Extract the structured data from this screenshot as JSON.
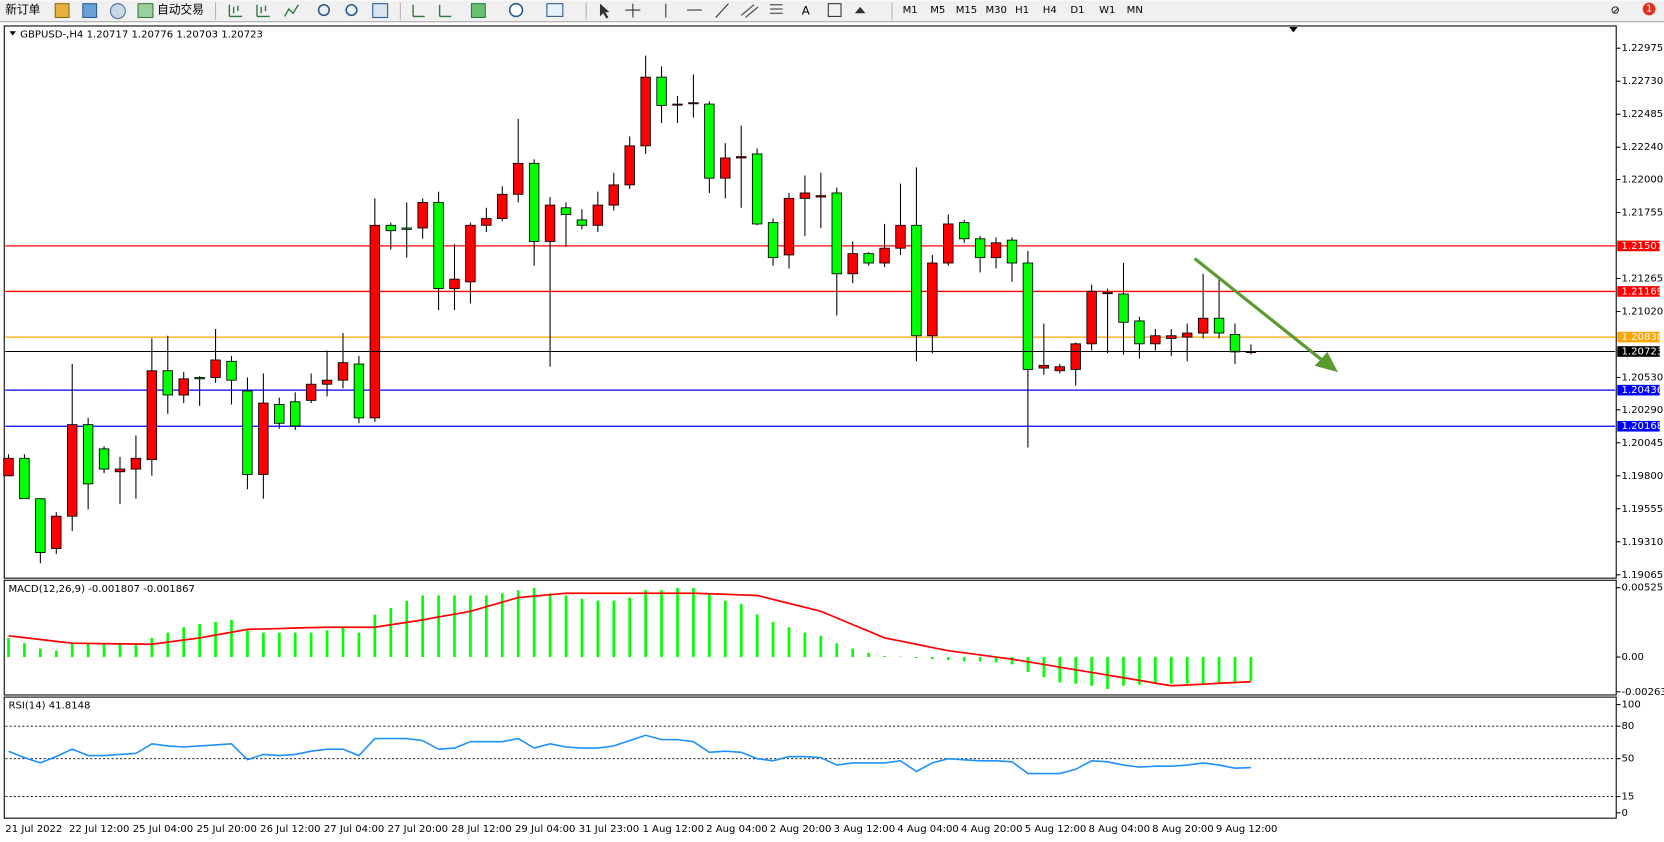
{
  "toolbar": {
    "new_order": "新订单",
    "auto_trade": "自动交易",
    "timeframes": [
      "M1",
      "M5",
      "M15",
      "M30",
      "H1",
      "H4",
      "D1",
      "W1",
      "MN"
    ],
    "notifications": "1"
  },
  "chart_data": [
    {
      "type": "candlestick",
      "title": "GBPUSD-,H4",
      "categories": [
        "21 Jul 2022",
        null,
        null,
        null,
        "22 Jul 12:00",
        null,
        null,
        null,
        "25 Jul 04:00",
        null,
        null,
        null,
        "25 Jul 20:00",
        null,
        null,
        null,
        "26 Jul 12:00",
        null,
        null,
        null,
        "27 Jul 04:00",
        null,
        null,
        null,
        "27 Jul 20:00",
        null,
        null,
        null,
        "28 Jul 12:00",
        null,
        null,
        null,
        "29 Jul 04:00",
        null,
        null,
        null,
        "31 Jul 23:00",
        null,
        null,
        null,
        "1 Aug 12:00",
        null,
        null,
        null,
        "2 Aug 04:00",
        null,
        null,
        null,
        "2 Aug 20:00",
        null,
        null,
        null,
        "3 Aug 12:00",
        null,
        null,
        null,
        "4 Aug 04:00",
        null,
        null,
        null,
        "4 Aug 20:00",
        null,
        null,
        null,
        "5 Aug 12:00",
        null,
        null,
        null,
        "8 Aug 04:00",
        null,
        null,
        null,
        "8 Aug 20:00",
        null,
        null,
        null,
        "9 Aug 12:00",
        null,
        null
      ],
      "open": [
        1.198,
        1.1993,
        1.1963,
        1.1926,
        1.195,
        1.2018,
        1.2,
        1.1983,
        1.1985,
        1.1992,
        1.2058,
        1.204,
        1.2053,
        1.2053,
        1.2065,
        1.2043,
        1.1981,
        1.2033,
        1.2035,
        1.2036,
        1.2048,
        1.2051,
        1.2063,
        1.2023,
        1.2166,
        1.2164,
        1.2164,
        1.2183,
        1.2119,
        1.2124,
        1.2166,
        1.2171,
        1.2189,
        1.2212,
        1.2154,
        1.2179,
        1.217,
        1.2166,
        1.2181,
        1.2196,
        1.2225,
        1.2276,
        1.2256,
        1.2257,
        1.2256,
        1.2201,
        1.2216,
        1.2219,
        1.2168,
        1.2144,
        1.2186,
        1.2187,
        1.219,
        1.213,
        1.2145,
        1.2138,
        1.2149,
        1.2166,
        1.2084,
        1.2138,
        1.2168,
        1.2156,
        1.2142,
        1.2155,
        1.2138,
        1.206,
        1.2058,
        1.2059,
        1.2078,
        1.2116,
        1.2115,
        1.2095,
        1.2078,
        1.2082,
        1.2083,
        1.2086,
        1.2097,
        1.2085,
        1.20717
      ],
      "high": [
        1.1996,
        1.1996,
        1.1963,
        1.1953,
        1.2063,
        1.2023,
        1.2002,
        1.1994,
        1.201,
        1.2082,
        1.2084,
        1.2057,
        1.2054,
        1.2089,
        1.2069,
        1.2053,
        1.2056,
        1.2038,
        1.2042,
        1.2056,
        1.2073,
        1.2086,
        1.2069,
        1.2186,
        1.2168,
        1.2183,
        1.2186,
        1.2191,
        1.2152,
        1.2168,
        1.2179,
        1.2195,
        1.2245,
        1.2215,
        1.2187,
        1.2183,
        1.2178,
        1.2191,
        1.2205,
        1.2232,
        1.2292,
        1.2284,
        1.2262,
        1.2278,
        1.2258,
        1.2227,
        1.224,
        1.2223,
        1.2171,
        1.219,
        1.2203,
        1.2205,
        1.2194,
        1.2154,
        1.2146,
        1.2167,
        1.2197,
        1.2209,
        1.2144,
        1.2174,
        1.217,
        1.2158,
        1.2157,
        1.2157,
        1.2147,
        1.2093,
        1.2063,
        1.2079,
        1.2122,
        1.2119,
        1.2138,
        1.2098,
        1.2089,
        1.2089,
        1.2093,
        1.213,
        1.2128,
        1.2093,
        1.20776
      ],
      "low": [
        1.198,
        1.1963,
        1.1915,
        1.1922,
        1.1939,
        1.1955,
        1.1982,
        1.1959,
        1.1963,
        1.198,
        1.2026,
        1.2034,
        1.2032,
        1.2049,
        1.2033,
        1.197,
        1.1963,
        1.2015,
        1.2014,
        1.2034,
        1.2039,
        1.2045,
        1.2019,
        1.202,
        1.2148,
        1.2142,
        1.2156,
        1.2103,
        1.2103,
        1.2108,
        1.2161,
        1.2169,
        1.2183,
        1.2136,
        1.2061,
        1.215,
        1.2163,
        1.2161,
        1.2177,
        1.2193,
        1.2219,
        1.2242,
        1.2242,
        1.2246,
        1.219,
        1.2186,
        1.2179,
        1.2166,
        1.2136,
        1.2134,
        1.2158,
        1.2164,
        1.2099,
        1.2123,
        1.2136,
        1.2135,
        1.2144,
        1.2065,
        1.2071,
        1.2136,
        1.2153,
        1.2131,
        1.2134,
        1.2124,
        1.2001,
        1.2055,
        1.2056,
        1.2047,
        1.2073,
        1.2071,
        1.207,
        1.2067,
        1.2073,
        1.2069,
        1.2065,
        1.2082,
        1.2082,
        1.2063,
        1.20703
      ],
      "close": [
        1.1993,
        1.1963,
        1.1923,
        1.195,
        1.2018,
        1.1974,
        1.1985,
        1.1985,
        1.1993,
        1.2058,
        1.204,
        1.2052,
        1.2052,
        1.2066,
        1.2051,
        1.1981,
        1.2034,
        1.2019,
        1.2017,
        1.2048,
        1.2051,
        1.2064,
        1.2023,
        1.2166,
        1.2162,
        1.2163,
        1.2183,
        1.2119,
        1.2126,
        1.2166,
        1.2171,
        1.2189,
        1.2212,
        1.2154,
        1.2181,
        1.2174,
        1.2166,
        1.2181,
        1.2196,
        1.2225,
        1.2276,
        1.2255,
        1.2256,
        1.2257,
        1.2201,
        1.2216,
        1.2217,
        1.2167,
        1.2142,
        1.2186,
        1.219,
        1.2188,
        1.213,
        1.2145,
        1.2138,
        1.2149,
        1.2166,
        1.2084,
        1.2138,
        1.2167,
        1.2156,
        1.2142,
        1.2153,
        1.2138,
        1.2059,
        1.2062,
        1.2061,
        1.2078,
        1.2117,
        1.2116,
        1.2094,
        1.2078,
        1.2084,
        1.2084,
        1.2086,
        1.2097,
        1.2086,
        1.2072,
        1.20723
      ],
      "up_color": "#ff0000",
      "down_color": "#00ff00",
      "ylim": [
        1.1904,
        1.2314
      ],
      "yticks": [
        1.22975,
        {
          "value": 1.2273,
          "label": "1.22730"
        },
        1.22485,
        {
          "value": 1.2224,
          "label": "1.22240"
        },
        {
          "value": 1.22,
          "label": "1.22000"
        },
        1.21755,
        1.21265,
        {
          "value": 1.2102,
          "label": "1.21020"
        },
        {
          "value": 1.2053,
          "label": "1.20530"
        },
        {
          "value": 1.2029,
          "label": "1.20290"
        },
        1.20045,
        {
          "value": 1.198,
          "label": "1.19800"
        },
        1.19555,
        {
          "value": 1.1931,
          "label": "1.19310"
        },
        1.19065
      ],
      "hlines": [
        {
          "value": 1.21507,
          "color": "#ff0000"
        },
        {
          "value": 1.21169,
          "color": "#ff0000"
        },
        {
          "value": 1.2083,
          "label": "1.20830",
          "color": "#ffa500"
        },
        {
          "value": 1.20436,
          "color": "#0000ff"
        },
        {
          "value": 1.20168,
          "color": "#0000ff"
        }
      ],
      "last_price_color": "#000000"
    },
    {
      "type": "macd",
      "title": "MACD(12,26,9)",
      "values": [
        0.00145,
        0.00105,
        0.00064,
        0.00048,
        0.00105,
        0.00105,
        0.00105,
        0.00097,
        0.00097,
        0.00145,
        0.00185,
        0.00226,
        0.0025,
        0.00266,
        0.00282,
        0.00202,
        0.00185,
        0.00185,
        0.00185,
        0.00185,
        0.00202,
        0.00226,
        0.00185,
        0.00322,
        0.00371,
        0.00427,
        0.00467,
        0.00467,
        0.00467,
        0.00467,
        0.00467,
        0.00484,
        0.00508,
        0.00524,
        0.00484,
        0.00467,
        0.00443,
        0.00427,
        0.00427,
        0.00451,
        0.00508,
        0.00508,
        0.00524,
        0.00524,
        0.00484,
        0.00427,
        0.00403,
        0.00322,
        0.00266,
        0.00226,
        0.00185,
        0.00161,
        0.00105,
        0.00064,
        0.00032,
        8e-05,
        4e-05,
        -8e-05,
        -0.00016,
        -0.00024,
        -0.00032,
        -0.00032,
        -0.0004,
        -0.00056,
        -0.00113,
        -0.00153,
        -0.00193,
        -0.00202,
        -0.00218,
        -0.00242,
        -0.00218,
        -0.0021,
        -0.00202,
        -0.00202,
        -0.00202,
        -0.00202,
        -0.00202,
        -0.00202,
        -0.001807
      ],
      "signal": [
        0.00161,
        0.00147,
        0.00133,
        0.00119,
        0.00105,
        0.00103,
        0.00102,
        0.001,
        0.00099,
        0.00097,
        0.00113,
        0.00129,
        0.00145,
        0.00167,
        0.00188,
        0.0021,
        0.00213,
        0.00216,
        0.0022,
        0.00223,
        0.00226,
        0.00226,
        0.00226,
        0.00226,
        0.00245,
        0.00263,
        0.00282,
        0.00304,
        0.00325,
        0.00347,
        0.00382,
        0.00416,
        0.00451,
        0.00462,
        0.00473,
        0.00484,
        0.00484,
        0.00484,
        0.00484,
        0.00484,
        0.00484,
        0.00484,
        0.00484,
        0.00484,
        0.0048,
        0.00476,
        0.00471,
        0.00467,
        0.00437,
        0.00407,
        0.00377,
        0.00347,
        0.00297,
        0.00246,
        0.00196,
        0.00145,
        0.00121,
        0.00097,
        0.00072,
        0.00048,
        0.00032,
        0.00016,
        0.0,
        -0.00016,
        -0.00036,
        -0.00056,
        -0.00077,
        -0.00097,
        -0.00117,
        -0.00137,
        -0.00157,
        -0.00177,
        -0.00198,
        -0.00218,
        -0.00212,
        -0.00206,
        -0.00199,
        -0.00193,
        -0.001867
      ],
      "color": "#00ff00",
      "signal_color": "#ff0000",
      "ylim": [
        -0.002636,
        0.005258
      ],
      "yticks": [
        0.005258,
        {
          "value": 0,
          "label": "0.00"
        },
        -0.002636
      ]
    },
    {
      "type": "line",
      "title": "RSI(14)",
      "values": [
        56.9,
        51.0,
        46.1,
        52.0,
        58.8,
        52.9,
        52.9,
        53.9,
        54.9,
        63.7,
        61.8,
        60.8,
        61.8,
        62.7,
        63.7,
        49.0,
        53.9,
        52.9,
        53.9,
        56.9,
        58.8,
        58.8,
        52.9,
        68.6,
        68.6,
        68.6,
        66.7,
        58.8,
        59.8,
        65.7,
        65.7,
        65.7,
        68.6,
        59.8,
        63.7,
        60.8,
        59.8,
        59.8,
        61.8,
        66.7,
        71.6,
        67.6,
        67.6,
        65.7,
        55.9,
        56.9,
        55.9,
        50.0,
        48.0,
        52.0,
        52.0,
        51.0,
        44.1,
        46.1,
        46.1,
        46.1,
        48.0,
        38.2,
        46.1,
        50.0,
        49.0,
        48.0,
        48.0,
        47.1,
        36.3,
        36.3,
        36.3,
        40.2,
        48.0,
        47.1,
        44.1,
        42.2,
        43.1,
        43.1,
        44.1,
        46.1,
        44.1,
        41.2,
        41.8148
      ],
      "color": "#1e90ff",
      "ylim": [
        0,
        100
      ],
      "yticks": [
        100,
        80,
        50,
        15,
        0
      ]
    }
  ]
}
